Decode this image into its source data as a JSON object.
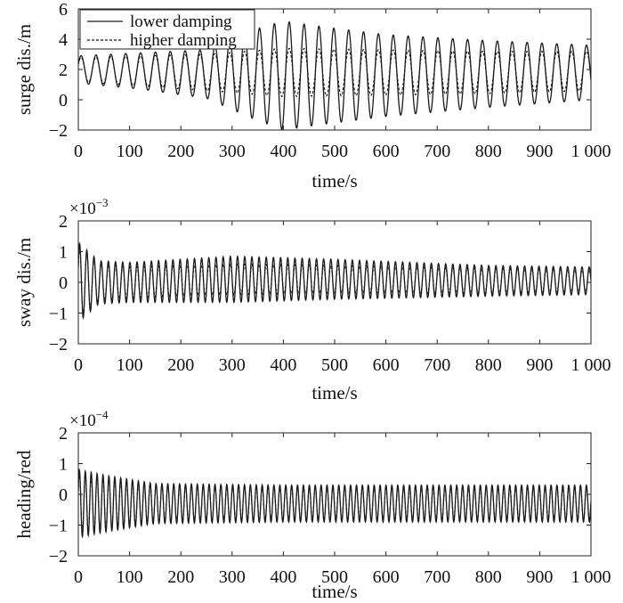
{
  "chart_data": [
    {
      "type": "line",
      "xlabel": "time/s",
      "ylabel": "surge dis./m",
      "xlim": [
        0,
        1000
      ],
      "ylim": [
        -2,
        6
      ],
      "xticks": [
        0,
        100,
        200,
        300,
        400,
        500,
        600,
        700,
        800,
        900,
        1000
      ],
      "xtick_labels": [
        "0",
        "100",
        "200",
        "300",
        "400",
        "500",
        "600",
        "700",
        "800",
        "900",
        "1 000"
      ],
      "yticks": [
        -2,
        0,
        2,
        4,
        6
      ],
      "ytick_labels": [
        "−2",
        "0",
        "2",
        "4",
        "6"
      ],
      "exponent": "",
      "grid": false,
      "legend_position": "top-left",
      "series": [
        {
          "name": "lower damping",
          "style": "solid",
          "period_s": 29,
          "envelope": [
            [
              0,
              2,
              0.9
            ],
            [
              120,
              1.9,
              1.2
            ],
            [
              250,
              1.7,
              1.6
            ],
            [
              330,
              1.7,
              2.8
            ],
            [
              400,
              1.6,
              3.6
            ],
            [
              460,
              1.6,
              3.3
            ],
            [
              600,
              1.6,
              2.7
            ],
            [
              800,
              1.7,
              2.2
            ],
            [
              1000,
              1.8,
              1.8
            ]
          ]
        },
        {
          "name": "higher damping",
          "style": "dashed",
          "period_s": 29,
          "envelope": [
            [
              0,
              2,
              0.8
            ],
            [
              120,
              1.9,
              1.0
            ],
            [
              250,
              1.8,
              1.2
            ],
            [
              400,
              1.8,
              1.6
            ],
            [
              600,
              1.8,
              1.5
            ],
            [
              800,
              1.8,
              1.4
            ],
            [
              1000,
              1.9,
              1.3
            ]
          ]
        }
      ]
    },
    {
      "type": "line",
      "xlabel": "time/s",
      "ylabel": "sway dis./m",
      "xlim": [
        0,
        1000
      ],
      "ylim": [
        -2,
        2
      ],
      "xticks": [
        0,
        100,
        200,
        300,
        400,
        500,
        600,
        700,
        800,
        900,
        1000
      ],
      "xtick_labels": [
        "0",
        "100",
        "200",
        "300",
        "400",
        "500",
        "600",
        "700",
        "800",
        "900",
        "1 000"
      ],
      "yticks": [
        -2,
        -1,
        0,
        1,
        2
      ],
      "ytick_labels": [
        "−2",
        "−1",
        "0",
        "1",
        "2"
      ],
      "exponent": {
        "base": "×10",
        "power": "−3"
      },
      "grid": false,
      "series": [
        {
          "name": "lower damping",
          "style": "solid",
          "period_s": 14,
          "envelope": [
            [
              0,
              0,
              1.3
            ],
            [
              40,
              0,
              0.7
            ],
            [
              100,
              0.0,
              0.65
            ],
            [
              300,
              0.1,
              0.75
            ],
            [
              500,
              0.1,
              0.65
            ],
            [
              800,
              0.05,
              0.5
            ],
            [
              1000,
              0.05,
              0.45
            ]
          ]
        },
        {
          "name": "higher damping",
          "style": "dashed",
          "period_s": 14,
          "envelope": [
            [
              0,
              0,
              1.2
            ],
            [
              40,
              0,
              0.6
            ],
            [
              100,
              0.0,
              0.5
            ],
            [
              300,
              0.1,
              0.5
            ],
            [
              500,
              0.1,
              0.45
            ],
            [
              800,
              0.05,
              0.4
            ],
            [
              1000,
              0.05,
              0.35
            ]
          ]
        }
      ]
    },
    {
      "type": "line",
      "xlabel": "time/s",
      "ylabel": "heading/red",
      "xlim": [
        0,
        1000
      ],
      "ylim": [
        -2,
        2
      ],
      "xticks": [
        0,
        100,
        200,
        300,
        400,
        500,
        600,
        700,
        800,
        900,
        1000
      ],
      "xtick_labels": [
        "0",
        "100",
        "200",
        "300",
        "400",
        "500",
        "600",
        "700",
        "800",
        "900",
        "1 000"
      ],
      "yticks": [
        -2,
        -1,
        0,
        1,
        2
      ],
      "ytick_labels": [
        "−2",
        "−1",
        "0",
        "1",
        "2"
      ],
      "exponent": {
        "base": "×10",
        "power": "−4"
      },
      "grid": false,
      "series": [
        {
          "name": "lower damping",
          "style": "solid",
          "period_s": 11.5,
          "envelope": [
            [
              0,
              -0.3,
              1.1
            ],
            [
              60,
              -0.3,
              0.9
            ],
            [
              150,
              -0.3,
              0.65
            ],
            [
              400,
              -0.3,
              0.6
            ],
            [
              1000,
              -0.3,
              0.6
            ]
          ]
        },
        {
          "name": "higher damping",
          "style": "dashed",
          "period_s": 11.5,
          "envelope": [
            [
              0,
              -0.3,
              1.0
            ],
            [
              60,
              -0.3,
              0.8
            ],
            [
              150,
              -0.3,
              0.6
            ],
            [
              400,
              -0.3,
              0.55
            ],
            [
              1000,
              -0.3,
              0.55
            ]
          ]
        }
      ]
    }
  ]
}
